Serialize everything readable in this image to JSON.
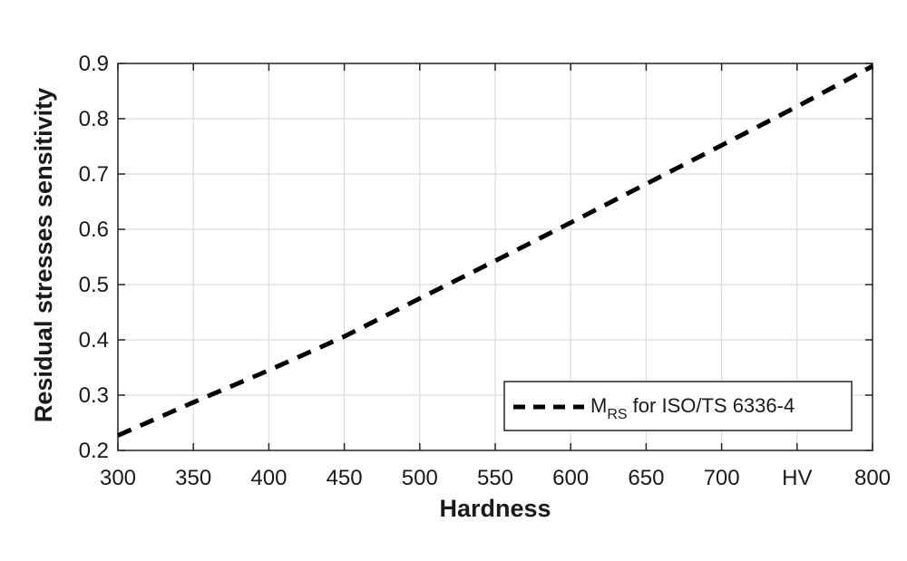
{
  "chart_data": {
    "type": "line",
    "xlabel": "Hardness",
    "ylabel": "Residual stresses sensitivity",
    "xlim": [
      300,
      800
    ],
    "ylim": [
      0.2,
      0.9
    ],
    "grid": true,
    "x_ticks": [
      300,
      350,
      400,
      450,
      500,
      550,
      600,
      650,
      700,
      750,
      800
    ],
    "x_tick_labels": [
      "300",
      "350",
      "400",
      "450",
      "500",
      "550",
      "600",
      "650",
      "700",
      "HV",
      "800"
    ],
    "y_ticks": [
      0.2,
      0.3,
      0.4,
      0.5,
      0.6,
      0.7,
      0.8,
      0.9
    ],
    "y_tick_labels": [
      "0.2",
      "0.3",
      "0.4",
      "0.5",
      "0.6",
      "0.7",
      "0.8",
      "0.9"
    ],
    "legend": {
      "placement": "bottom-right",
      "main": "M",
      "subscript": "RS",
      "suffix": " for ISO/TS 6336-4"
    },
    "series": [
      {
        "name": "MRS for ISO/TS 6336-4",
        "style": "dashed",
        "color": "#000000",
        "x": [
          300,
          350,
          400,
          450,
          500,
          550,
          600,
          650,
          700,
          750,
          800
        ],
        "y": [
          0.227,
          0.287,
          0.345,
          0.406,
          0.475,
          0.543,
          0.612,
          0.682,
          0.752,
          0.822,
          0.895
        ]
      }
    ]
  }
}
